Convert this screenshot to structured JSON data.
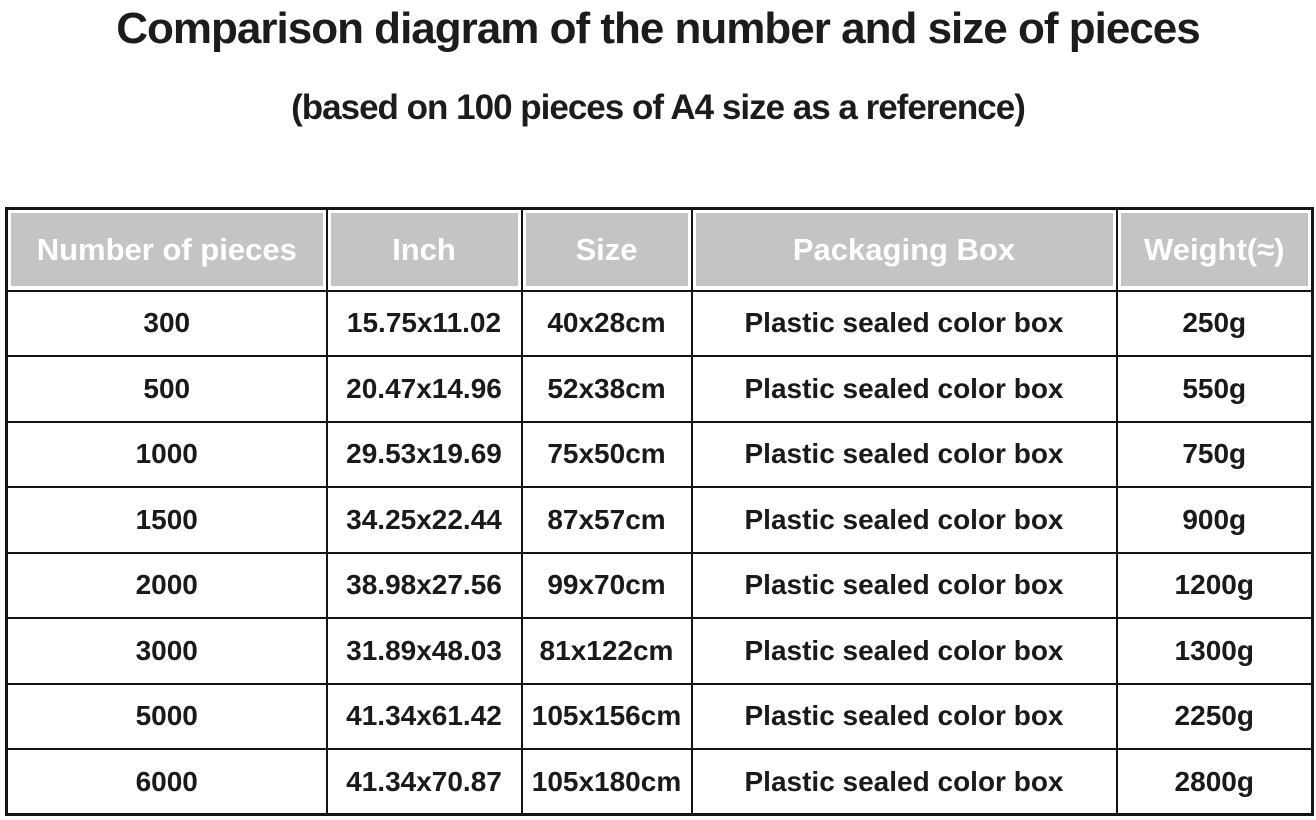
{
  "chart_data": {
    "type": "table",
    "title": "Comparison diagram of the number and size of pieces",
    "subtitle": "(based on 100 pieces of A4 size as a reference)",
    "columns": [
      "Number of pieces",
      "Inch",
      "Size",
      "Packaging Box",
      "Weight(≈)"
    ],
    "rows": [
      [
        "300",
        "15.75x11.02",
        "40x28cm",
        "Plastic sealed color box",
        "250g"
      ],
      [
        "500",
        "20.47x14.96",
        "52x38cm",
        "Plastic sealed color box",
        "550g"
      ],
      [
        "1000",
        "29.53x19.69",
        "75x50cm",
        "Plastic sealed color box",
        "750g"
      ],
      [
        "1500",
        "34.25x22.44",
        "87x57cm",
        "Plastic sealed color box",
        "900g"
      ],
      [
        "2000",
        "38.98x27.56",
        "99x70cm",
        "Plastic sealed color box",
        "1200g"
      ],
      [
        "3000",
        "31.89x48.03",
        "81x122cm",
        "Plastic sealed color box",
        "1300g"
      ],
      [
        "5000",
        "41.34x61.42",
        "105x156cm",
        "Plastic sealed color box",
        "2250g"
      ],
      [
        "6000",
        "41.34x70.87",
        "105x180cm",
        "Plastic sealed color box",
        "2800g"
      ]
    ],
    "layout": {
      "grid": "on",
      "header_position": "top"
    }
  },
  "colors": {
    "header_bg": "#c5c4c4",
    "header_text": "#ffffff",
    "body_text": "#1a1a1a",
    "border": "#141414",
    "background": "#ffffff"
  }
}
